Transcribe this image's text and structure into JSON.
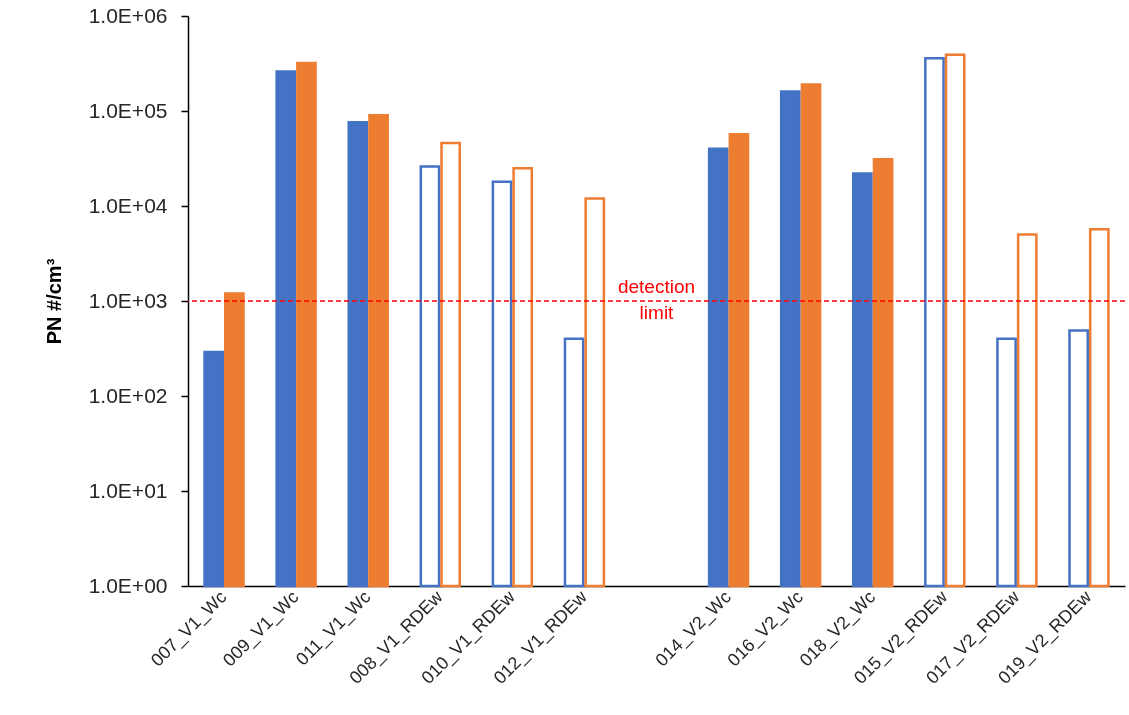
{
  "chart_data": {
    "type": "bar",
    "ylabel": "PN #/cm³",
    "categories": [
      "007_V1_Wc",
      "009_V1_Wc",
      "011_V1_Wc",
      "008_V1_RDEw",
      "010_V1_RDEw",
      "012_V1_RDEw",
      null,
      "014_V2_Wc",
      "016_V2_Wc",
      "018_V2_Wc",
      "015_V2_RDEw",
      "017_V2_RDEw",
      "019_V2_RDEw"
    ],
    "series": [
      {
        "color": "#4472c4",
        "values": [
          290,
          260000,
          76000,
          26000,
          18000,
          400,
          null,
          40000,
          160000,
          22000,
          360000,
          400,
          490
        ],
        "colors": [
          "#4472c4",
          "#4472c4",
          "#4472c4",
          "#ffffff",
          "#ffffff",
          "#ffffff",
          null,
          "#4472c4",
          "#4472c4",
          "#4472c4",
          "#ffffff",
          "#ffffff",
          "#ffffff"
        ]
      },
      {
        "color": "#ed7d31",
        "values": [
          1200,
          320000,
          90000,
          46000,
          25000,
          12000,
          null,
          57000,
          190000,
          31000,
          390000,
          5000,
          5700
        ],
        "colors": [
          "#ed7d31",
          "#ed7d31",
          "#ed7d31",
          "#ffffff",
          "#ffffff",
          "#ffffff",
          null,
          "#ed7d31",
          "#ed7d31",
          "#ed7d31",
          "#ffffff",
          "#ffffff",
          "#ffffff"
        ]
      }
    ],
    "log": "y",
    "ylim": [
      1,
      1000000
    ],
    "yticks": [
      {
        "value": 1,
        "label": "1.0E+00"
      },
      {
        "value": 10,
        "label": "1.0E+01"
      },
      {
        "value": 100,
        "label": "1.0E+02"
      },
      {
        "value": 1000,
        "label": "1.0E+03"
      },
      {
        "value": 10000,
        "label": "1.0E+04"
      },
      {
        "value": 100000,
        "label": "1.0E+05"
      },
      {
        "value": 1000000,
        "label": "1.0E+06"
      }
    ],
    "ref_lines": [
      {
        "axis": "y",
        "value": 1000,
        "label": "detection limit",
        "color": "#ff0000",
        "line_style": "dashed"
      }
    ]
  }
}
